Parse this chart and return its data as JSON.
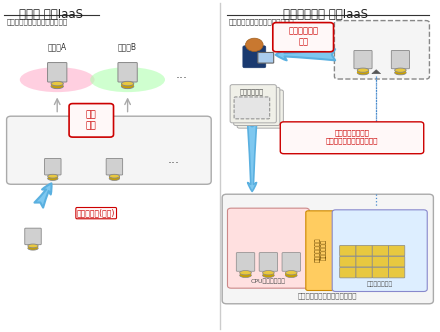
{
  "bg_color": "#ffffff",
  "left_title": "従来の 物理IaaS",
  "left_subtitle": "物理サーバを利用者ごとで提供",
  "right_title": "新技術による 物理IaaS",
  "right_subtitle": "物理サーバを動的に構成して提供",
  "user_a_label": "利用者A",
  "user_b_label": "利用者B",
  "kotei_label": "固定\n割当",
  "manual_label": "手動で構築(数日)",
  "ondemand_label": "オンデマンド\n提供",
  "system_label": "システム構成",
  "user_def_label": "利用者の定義した\n物理システムを動的に構成",
  "cpu_pool_label": "CPUメモリプール",
  "disk_nw_label": "ディスクエリア\nネットワーク",
  "disk_pool_label": "ディスクプール",
  "resource_pool_label": "資源プール化アーキテクチャー"
}
